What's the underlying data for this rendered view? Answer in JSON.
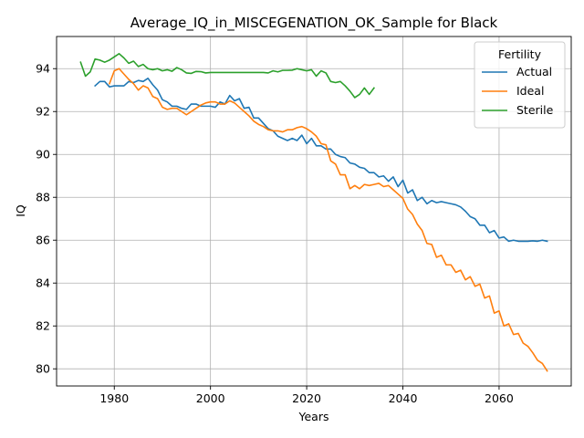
{
  "chart_data": {
    "type": "line",
    "title": "Average_IQ_in_MISCEGENATION_OK_Sample for Black",
    "xlabel": "Years",
    "ylabel": "IQ",
    "xlim": [
      1968,
      2075
    ],
    "ylim": [
      79.2,
      95.5
    ],
    "xticks": [
      1980,
      2000,
      2020,
      2040,
      2060
    ],
    "yticks": [
      80,
      82,
      84,
      86,
      88,
      90,
      92,
      94
    ],
    "grid": true,
    "legend": {
      "title": "Fertility",
      "placement": "top-right"
    },
    "series": [
      {
        "name": "Actual",
        "color": "#1f77b4",
        "x": [
          1976,
          1977,
          1978,
          1979,
          1980,
          1981,
          1982,
          1983,
          1984,
          1985,
          1986,
          1987,
          1988,
          1989,
          1990,
          1991,
          1992,
          1993,
          1994,
          1995,
          1996,
          1997,
          1998,
          1999,
          2000,
          2001,
          2002,
          2003,
          2004,
          2005,
          2006,
          2007,
          2008,
          2009,
          2010,
          2011,
          2012,
          2013,
          2014,
          2015,
          2016,
          2017,
          2018,
          2019,
          2020,
          2021,
          2022,
          2023,
          2024,
          2025,
          2026,
          2027,
          2028,
          2029,
          2030,
          2031,
          2032,
          2033,
          2034,
          2035,
          2036,
          2037,
          2038,
          2039,
          2040,
          2041,
          2042,
          2043,
          2044,
          2045,
          2046,
          2047,
          2048,
          2049,
          2050,
          2051,
          2052,
          2053,
          2054,
          2055,
          2056,
          2057,
          2058,
          2059,
          2060,
          2061,
          2062,
          2063,
          2064,
          2065,
          2066,
          2067,
          2068,
          2069,
          2070
        ],
        "y": [
          93.2,
          93.4,
          93.4,
          93.15,
          93.2,
          93.2,
          93.2,
          93.4,
          93.35,
          93.45,
          93.4,
          93.55,
          93.25,
          93.0,
          92.55,
          92.45,
          92.25,
          92.25,
          92.15,
          92.1,
          92.35,
          92.35,
          92.25,
          92.25,
          92.25,
          92.2,
          92.45,
          92.35,
          92.75,
          92.5,
          92.6,
          92.15,
          92.2,
          91.7,
          91.7,
          91.45,
          91.2,
          91.1,
          90.85,
          90.75,
          90.65,
          90.75,
          90.65,
          90.9,
          90.5,
          90.75,
          90.4,
          90.4,
          90.25,
          90.25,
          90.0,
          89.9,
          89.85,
          89.6,
          89.55,
          89.4,
          89.35,
          89.15,
          89.15,
          88.95,
          89.0,
          88.75,
          88.95,
          88.5,
          88.8,
          88.2,
          88.35,
          87.85,
          88.0,
          87.7,
          87.85,
          87.75,
          87.8,
          87.75,
          87.7,
          87.65,
          87.55,
          87.35,
          87.1,
          87.0,
          86.7,
          86.7,
          86.35,
          86.45,
          86.1,
          86.15,
          85.95,
          86.0,
          85.95,
          85.95,
          85.95,
          85.97,
          85.95,
          86.0,
          85.95
        ]
      },
      {
        "name": "Ideal",
        "color": "#ff7f0e",
        "x": [
          1979,
          1980,
          1981,
          1982,
          1983,
          1984,
          1985,
          1986,
          1987,
          1988,
          1989,
          1990,
          1991,
          1992,
          1993,
          1994,
          1995,
          1996,
          1997,
          1998,
          1999,
          2000,
          2001,
          2002,
          2003,
          2004,
          2005,
          2006,
          2007,
          2008,
          2009,
          2010,
          2011,
          2012,
          2013,
          2014,
          2015,
          2016,
          2017,
          2018,
          2019,
          2020,
          2021,
          2022,
          2023,
          2024,
          2025,
          2026,
          2027,
          2028,
          2029,
          2030,
          2031,
          2032,
          2033,
          2034,
          2035,
          2036,
          2037,
          2038,
          2039,
          2040,
          2041,
          2042,
          2043,
          2044,
          2045,
          2046,
          2047,
          2048,
          2049,
          2050,
          2051,
          2052,
          2053,
          2054,
          2055,
          2056,
          2057,
          2058,
          2059,
          2060,
          2061,
          2062,
          2063,
          2064,
          2065,
          2066,
          2067,
          2068,
          2069,
          2070
        ],
        "y": [
          93.3,
          93.9,
          94.0,
          93.75,
          93.5,
          93.3,
          93.0,
          93.2,
          93.1,
          92.7,
          92.6,
          92.2,
          92.1,
          92.15,
          92.15,
          92.0,
          91.85,
          92.0,
          92.15,
          92.3,
          92.4,
          92.45,
          92.45,
          92.35,
          92.35,
          92.5,
          92.4,
          92.2,
          92.0,
          91.8,
          91.55,
          91.4,
          91.3,
          91.15,
          91.1,
          91.1,
          91.05,
          91.15,
          91.15,
          91.25,
          91.3,
          91.2,
          91.05,
          90.85,
          90.5,
          90.45,
          89.7,
          89.55,
          89.05,
          89.05,
          88.4,
          88.55,
          88.4,
          88.6,
          88.55,
          88.6,
          88.65,
          88.5,
          88.55,
          88.35,
          88.15,
          87.95,
          87.45,
          87.2,
          86.75,
          86.45,
          85.85,
          85.8,
          85.2,
          85.3,
          84.85,
          84.85,
          84.5,
          84.6,
          84.15,
          84.3,
          83.85,
          83.95,
          83.3,
          83.4,
          82.6,
          82.7,
          82.0,
          82.1,
          81.6,
          81.65,
          81.2,
          81.05,
          80.75,
          80.4,
          80.25,
          79.9
        ]
      },
      {
        "name": "Sterile",
        "color": "#2ca02c",
        "x": [
          1973,
          1974,
          1975,
          1976,
          1977,
          1978,
          1979,
          1980,
          1981,
          1982,
          1983,
          1984,
          1985,
          1986,
          1987,
          1988,
          1989,
          1990,
          1991,
          1992,
          1993,
          1994,
          1995,
          1996,
          1997,
          1998,
          1999,
          2000,
          2001,
          2002,
          2003,
          2004,
          2005,
          2006,
          2007,
          2008,
          2009,
          2010,
          2011,
          2012,
          2013,
          2014,
          2015,
          2016,
          2017,
          2018,
          2019,
          2020,
          2021,
          2022,
          2023,
          2024,
          2025,
          2026,
          2027,
          2028,
          2029,
          2030,
          2031,
          2032,
          2033,
          2034
        ],
        "y": [
          94.3,
          93.65,
          93.85,
          94.45,
          94.4,
          94.3,
          94.4,
          94.55,
          94.7,
          94.5,
          94.25,
          94.35,
          94.1,
          94.2,
          94.0,
          93.95,
          94.0,
          93.9,
          93.95,
          93.88,
          94.05,
          93.95,
          93.8,
          93.78,
          93.87,
          93.86,
          93.8,
          93.82,
          93.82,
          93.82,
          93.82,
          93.82,
          93.82,
          93.82,
          93.82,
          93.82,
          93.82,
          93.82,
          93.82,
          93.8,
          93.9,
          93.85,
          93.92,
          93.92,
          93.93,
          94.0,
          93.95,
          93.9,
          93.95,
          93.65,
          93.9,
          93.8,
          93.4,
          93.35,
          93.4,
          93.2,
          92.95,
          92.65,
          92.8,
          93.1,
          92.8,
          93.1
        ]
      }
    ]
  }
}
